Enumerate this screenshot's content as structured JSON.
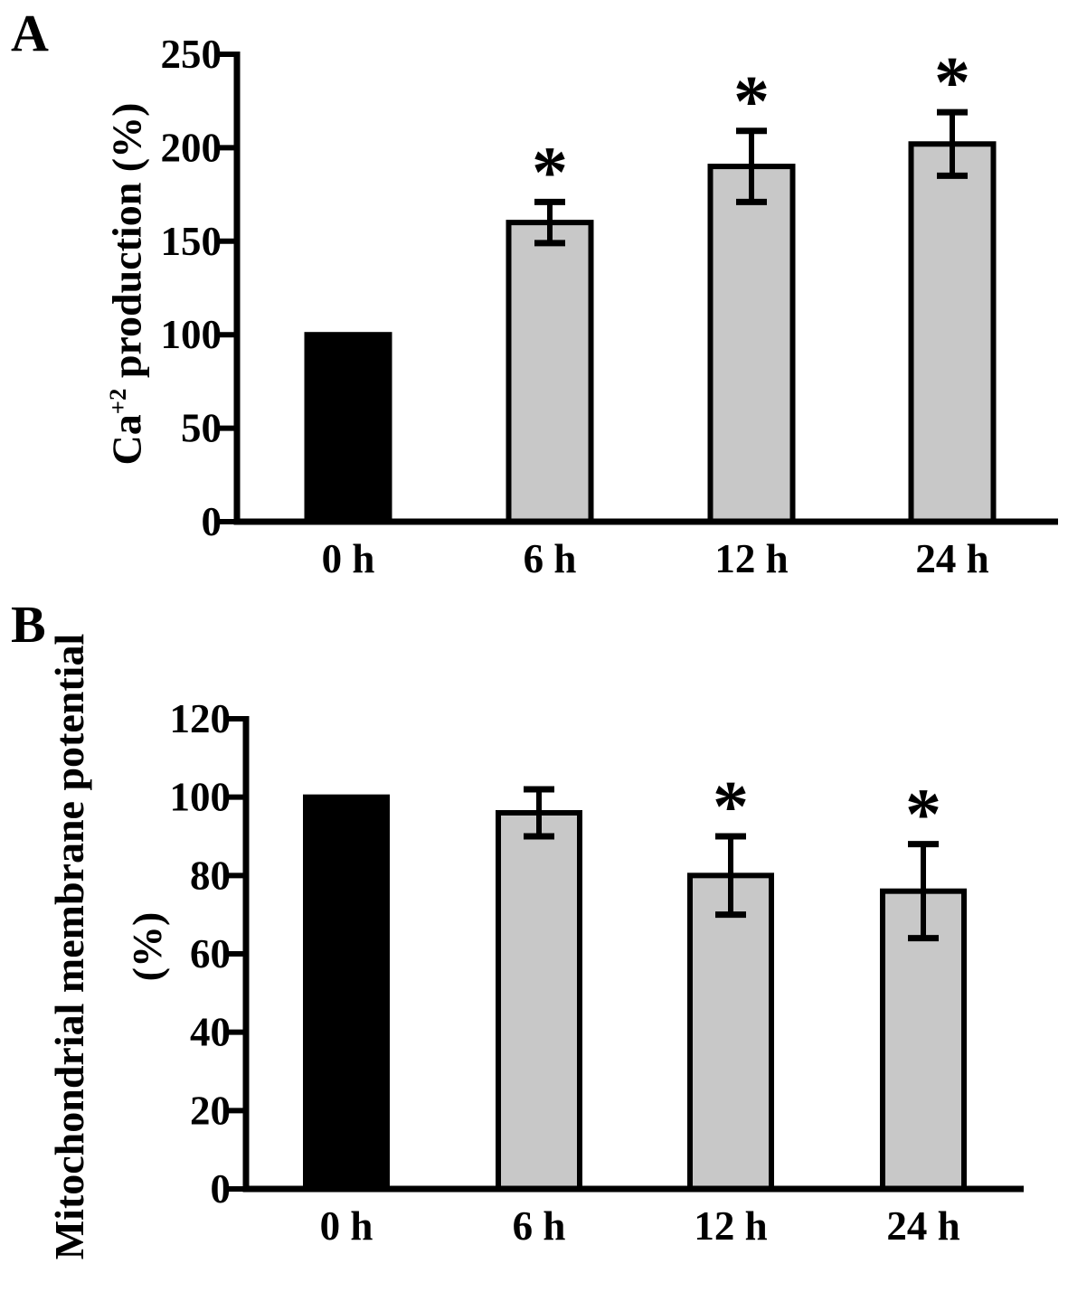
{
  "figure": {
    "background": "#ffffff"
  },
  "significance_marker": "*",
  "colors": {
    "control_bar": "#000000",
    "treated_bar": "#c8c8c8",
    "outline": "#000000",
    "text": "#000000"
  },
  "chart_data": [
    {
      "type": "bar",
      "panel_label": "A",
      "ylabel": "Ca+2 production (%)",
      "ylabel_parts": {
        "prefix": "Ca",
        "superscript": "+2",
        "suffix": " production (%)"
      },
      "categories": [
        "0 h",
        "6 h",
        "12 h",
        "24 h"
      ],
      "values": [
        100,
        160,
        190,
        202
      ],
      "errors": [
        0,
        11,
        19,
        17
      ],
      "significant": [
        false,
        true,
        true,
        true
      ],
      "bar_colors": [
        "#000000",
        "#c8c8c8",
        "#c8c8c8",
        "#c8c8c8"
      ],
      "ylim": [
        0,
        250
      ],
      "yticks": [
        0,
        50,
        100,
        150,
        200,
        250
      ],
      "grid": "off",
      "legend": "none"
    },
    {
      "type": "bar",
      "panel_label": "B",
      "ylabel": "Mitochondrial membrane potential (%)",
      "ylabel_lines": [
        "Mitochondrial membrane potential",
        "(%)"
      ],
      "categories": [
        "0 h",
        "6 h",
        "12 h",
        "24 h"
      ],
      "values": [
        100,
        96,
        80,
        76
      ],
      "errors": [
        0,
        6,
        10,
        12
      ],
      "significant": [
        false,
        false,
        true,
        true
      ],
      "bar_colors": [
        "#000000",
        "#c8c8c8",
        "#c8c8c8",
        "#c8c8c8"
      ],
      "ylim": [
        0,
        120
      ],
      "yticks": [
        0,
        20,
        40,
        60,
        80,
        100,
        120
      ],
      "grid": "off",
      "legend": "none"
    }
  ]
}
